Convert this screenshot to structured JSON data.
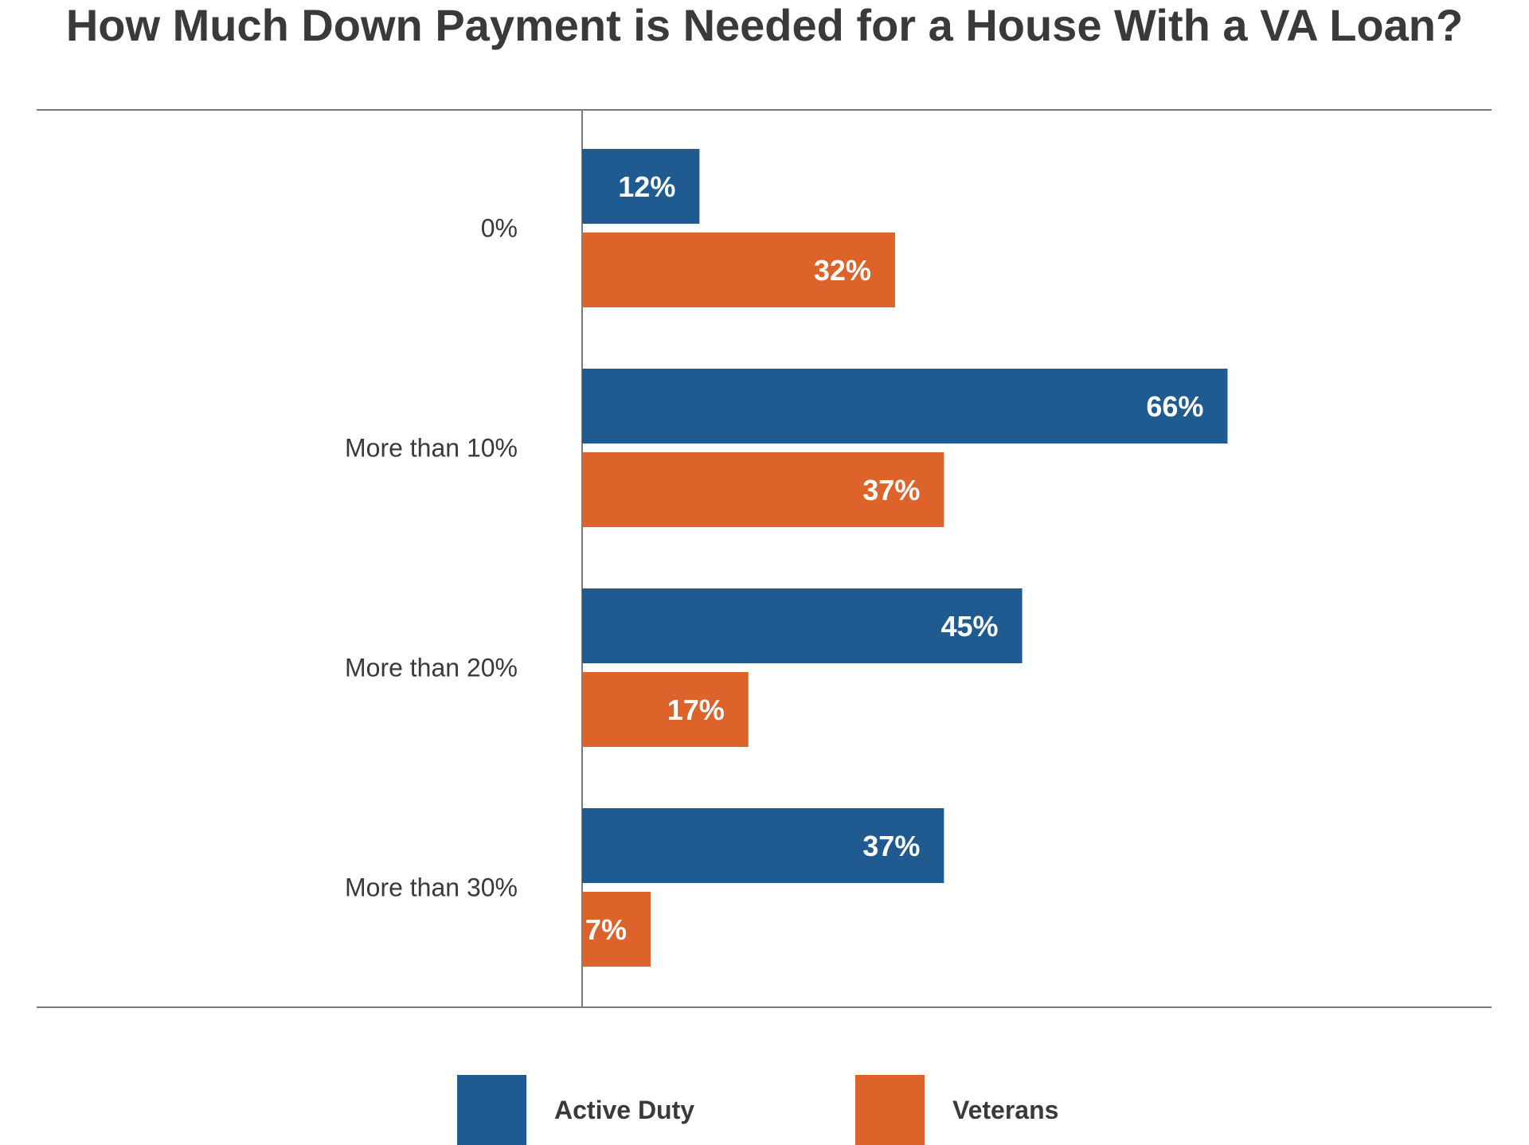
{
  "chart_data": {
    "type": "bar",
    "orientation": "horizontal",
    "title": "How Much Down Payment is Needed for a House With a VA Loan?",
    "categories": [
      "0%",
      "More than 10%",
      "More than 20%",
      "More than 30%"
    ],
    "series": [
      {
        "name": "Active Duty",
        "values": [
          12,
          66,
          45,
          37
        ],
        "color": "#1f5a91"
      },
      {
        "name": "Veterans",
        "values": [
          32,
          37,
          17,
          7
        ],
        "color": "#dd632b"
      }
    ],
    "value_suffix": "%",
    "xlim": [
      0,
      93
    ],
    "grid": false,
    "legend_position": "bottom"
  }
}
